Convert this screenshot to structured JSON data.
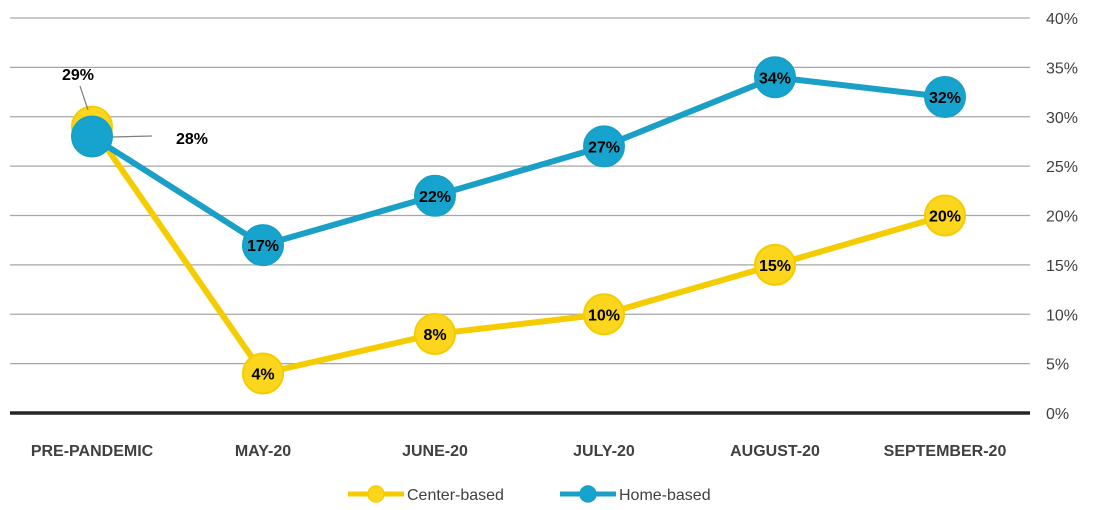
{
  "chart_data": {
    "type": "line",
    "categories": [
      "PRE-PANDEMIC",
      "MAY-20",
      "JUNE-20",
      "JULY-20",
      "AUGUST-20",
      "SEPTEMBER-20"
    ],
    "series": [
      {
        "name": "Center-based",
        "color": "#f5cc00",
        "marker_fill": "#fcd61c",
        "values": [
          29,
          4,
          8,
          10,
          15,
          20
        ],
        "labels": [
          "29%",
          "4%",
          "8%",
          "10%",
          "15%",
          "20%"
        ]
      },
      {
        "name": "Home-based",
        "color": "#1a9fc6",
        "marker_fill": "#16a3cd",
        "values": [
          28,
          17,
          22,
          27,
          34,
          32
        ],
        "labels": [
          "28%",
          "17%",
          "22%",
          "27%",
          "34%",
          "32%"
        ]
      }
    ],
    "ylim": [
      0,
      40
    ],
    "y_ticks": [
      0,
      5,
      10,
      15,
      20,
      25,
      30,
      35,
      40
    ],
    "y_tick_labels": [
      "0%",
      "5%",
      "10%",
      "15%",
      "20%",
      "25%",
      "30%",
      "35%",
      "40%"
    ],
    "y_axis_side": "right",
    "grid": true,
    "legend_position": "bottom",
    "title": "",
    "xlabel": "",
    "ylabel": ""
  }
}
